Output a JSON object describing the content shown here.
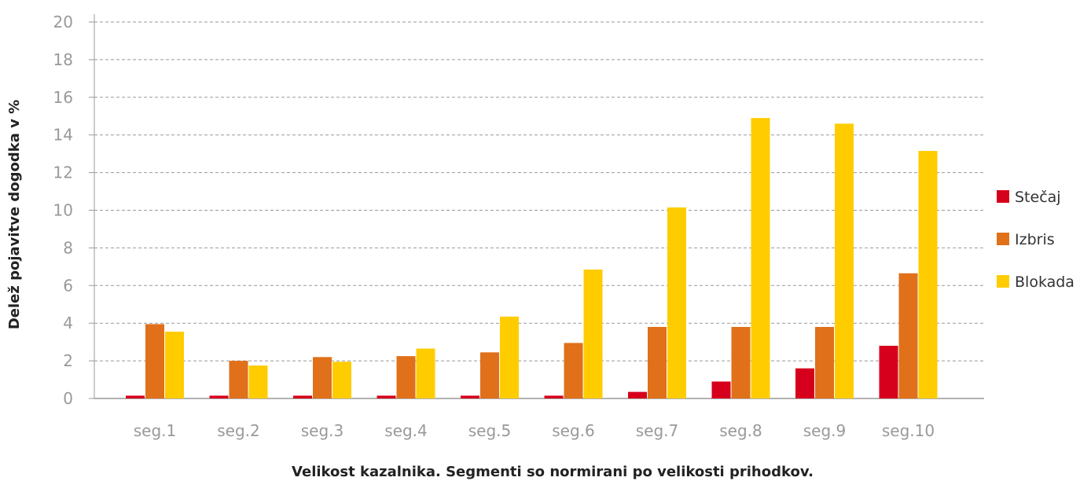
{
  "colors": {
    "stecaj": "#d6001c",
    "izbris": "#e0701a",
    "blokada": "#ffcc00",
    "grid": "#999999",
    "axis": "#999999",
    "tick_text": "#999999"
  },
  "chart_data": {
    "type": "bar",
    "xlabel": "Velikost kazalnika. Segmenti so normirani po velikosti prihodkov.",
    "ylabel": "Delež pojavitve dogodka v %",
    "ylim": [
      0,
      20
    ],
    "yticks": [
      0,
      2,
      4,
      6,
      8,
      10,
      12,
      14,
      16,
      18,
      20
    ],
    "grid": true,
    "legend_position": "right",
    "categories": [
      "seg.1",
      "seg.2",
      "seg.3",
      "seg.4",
      "seg.5",
      "seg.6",
      "seg.7",
      "seg.8",
      "seg.9",
      "seg.10"
    ],
    "series": [
      {
        "name": "Stečaj",
        "color": "#d6001c",
        "values": [
          0.15,
          0.15,
          0.15,
          0.15,
          0.15,
          0.15,
          0.35,
          0.9,
          1.6,
          2.8
        ]
      },
      {
        "name": "Izbris",
        "color": "#e0701a",
        "values": [
          3.95,
          2.0,
          2.2,
          2.25,
          2.45,
          2.95,
          3.8,
          3.8,
          3.8,
          6.65
        ]
      },
      {
        "name": "Blokada",
        "color": "#ffcc00",
        "values": [
          3.55,
          1.75,
          1.95,
          2.65,
          4.35,
          6.85,
          10.15,
          14.9,
          14.6,
          13.15
        ]
      }
    ]
  }
}
